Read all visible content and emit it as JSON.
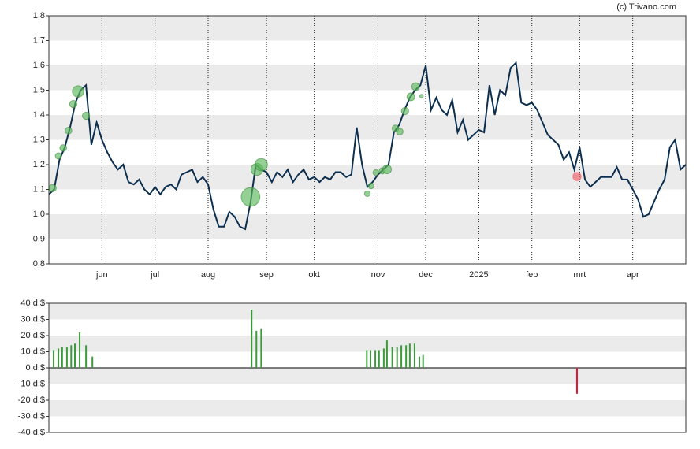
{
  "credit": "(c) Trivano.com",
  "chart_data": [
    {
      "type": "line",
      "color": "#0d2f4f",
      "categories": [
        null,
        null,
        null,
        null,
        null,
        null,
        null,
        null,
        null,
        null,
        "jun",
        null,
        null,
        null,
        null,
        null,
        null,
        null,
        null,
        null,
        "jul",
        null,
        null,
        null,
        null,
        null,
        null,
        null,
        null,
        null,
        "aug",
        null,
        null,
        null,
        null,
        null,
        null,
        null,
        null,
        null,
        null,
        "sep",
        null,
        null,
        null,
        null,
        null,
        null,
        null,
        null,
        "okt",
        null,
        null,
        null,
        null,
        null,
        null,
        null,
        null,
        null,
        null,
        null,
        "nov",
        null,
        null,
        null,
        null,
        null,
        null,
        null,
        null,
        "dec",
        null,
        null,
        null,
        null,
        null,
        null,
        null,
        null,
        null,
        "2025",
        null,
        null,
        null,
        null,
        null,
        null,
        null,
        null,
        null,
        "feb",
        null,
        null,
        null,
        null,
        null,
        null,
        null,
        null,
        "mrt",
        null,
        null,
        null,
        null,
        null,
        null,
        null,
        null,
        null,
        "apr",
        null,
        null,
        null,
        null,
        null,
        null,
        null,
        null,
        null,
        null
      ],
      "values": [
        1.08,
        1.1,
        1.22,
        1.27,
        1.35,
        1.45,
        1.5,
        1.52,
        1.28,
        1.37,
        1.3,
        1.25,
        1.21,
        1.18,
        1.2,
        1.13,
        1.12,
        1.14,
        1.1,
        1.08,
        1.11,
        1.08,
        1.11,
        1.12,
        1.1,
        1.16,
        1.17,
        1.18,
        1.13,
        1.15,
        1.12,
        1.02,
        0.95,
        0.95,
        1.01,
        0.99,
        0.95,
        0.94,
        1.05,
        1.2,
        1.18,
        1.17,
        1.13,
        1.17,
        1.15,
        1.18,
        1.13,
        1.16,
        1.18,
        1.14,
        1.15,
        1.13,
        1.15,
        1.14,
        1.17,
        1.17,
        1.15,
        1.16,
        1.35,
        1.2,
        1.11,
        1.13,
        1.16,
        1.18,
        1.2,
        1.33,
        1.36,
        1.42,
        1.47,
        1.5,
        1.52,
        1.6,
        1.42,
        1.47,
        1.42,
        1.4,
        1.46,
        1.33,
        1.38,
        1.3,
        1.32,
        1.34,
        1.33,
        1.52,
        1.4,
        1.5,
        1.48,
        1.59,
        1.61,
        1.45,
        1.44,
        1.45,
        1.42,
        1.37,
        1.32,
        1.3,
        1.28,
        1.22,
        1.25,
        1.18,
        1.27,
        1.14,
        1.11,
        1.13,
        1.15,
        1.15,
        1.15,
        1.19,
        1.14,
        1.14,
        1.1,
        1.06,
        0.99,
        1.0,
        1.05,
        1.1,
        1.14,
        1.27,
        1.3,
        1.18,
        1.2
      ],
      "ylim": [
        0.8,
        1.8
      ],
      "yticks": [
        {
          "value": 0.8,
          "label": "0,8"
        },
        {
          "value": 0.9,
          "label": "0,9"
        },
        {
          "value": 1.0,
          "label": "1,0"
        },
        {
          "value": 1.1,
          "label": "1,1"
        },
        {
          "value": 1.2,
          "label": "1,2"
        },
        {
          "value": 1.3,
          "label": "1,3"
        },
        {
          "value": 1.4,
          "label": "1,4"
        },
        {
          "value": 1.5,
          "label": "1,5"
        },
        {
          "value": 1.6,
          "label": "1,6"
        },
        {
          "value": 1.7,
          "label": "1,7"
        },
        {
          "value": 1.8,
          "label": "1,8"
        }
      ],
      "bubbles": {
        "x": [
          0.7,
          1.8,
          2.7,
          3.7,
          4.6,
          5.5,
          7.0,
          38.0,
          39.2,
          40.0,
          60.0,
          60.7,
          61.6,
          62.8,
          63.7,
          65.3,
          66.1,
          67.1,
          68.2,
          69.1,
          70.2,
          99.5
        ],
        "values": [
          1.105,
          1.235,
          1.267,
          1.337,
          1.444,
          1.495,
          1.397,
          1.07,
          1.181,
          1.2,
          1.083,
          1.114,
          1.168,
          1.175,
          1.181,
          1.346,
          1.333,
          1.416,
          1.473,
          1.514,
          1.476,
          1.152
        ],
        "sizes": [
          14,
          12,
          13,
          13,
          14,
          22,
          14,
          36,
          23,
          24,
          11,
          11,
          11,
          12,
          17,
          13,
          13,
          14,
          15,
          15,
          7,
          -16
        ],
        "color": "#5cb85c",
        "negative_color": "#f0606a"
      }
    },
    {
      "type": "bar",
      "color": "#3c9a3c",
      "negative_color": "#e0182b",
      "x": [
        0.9,
        1.8,
        2.5,
        3.4,
        4.2,
        4.9,
        5.8,
        7.0,
        8.2,
        38.2,
        39.1,
        40.0,
        59.9,
        60.6,
        61.5,
        62.2,
        63.1,
        63.7,
        64.7,
        65.6,
        66.4,
        67.3,
        68.0,
        68.9,
        69.8,
        70.5,
        99.5
      ],
      "values": [
        11,
        12,
        13,
        13,
        14,
        15,
        22,
        14,
        7,
        36,
        23,
        24,
        11,
        11,
        11,
        11,
        12,
        17,
        13,
        13,
        14,
        14,
        15,
        15,
        7,
        8,
        -16
      ],
      "xlim": [
        0,
        120
      ],
      "ylim": [
        -40,
        40
      ],
      "yticks": [
        {
          "value": -40,
          "label": "-40 d.$"
        },
        {
          "value": -30,
          "label": "-30 d.$"
        },
        {
          "value": -20,
          "label": "-20 d.$"
        },
        {
          "value": -10,
          "label": "-10 d.$"
        },
        {
          "value": 0,
          "label": "0 d.$"
        },
        {
          "value": 10,
          "label": "10 d.$"
        },
        {
          "value": 20,
          "label": "20 d.$"
        },
        {
          "value": 30,
          "label": "30 d.$"
        },
        {
          "value": 40,
          "label": "40 d.$"
        }
      ]
    }
  ]
}
